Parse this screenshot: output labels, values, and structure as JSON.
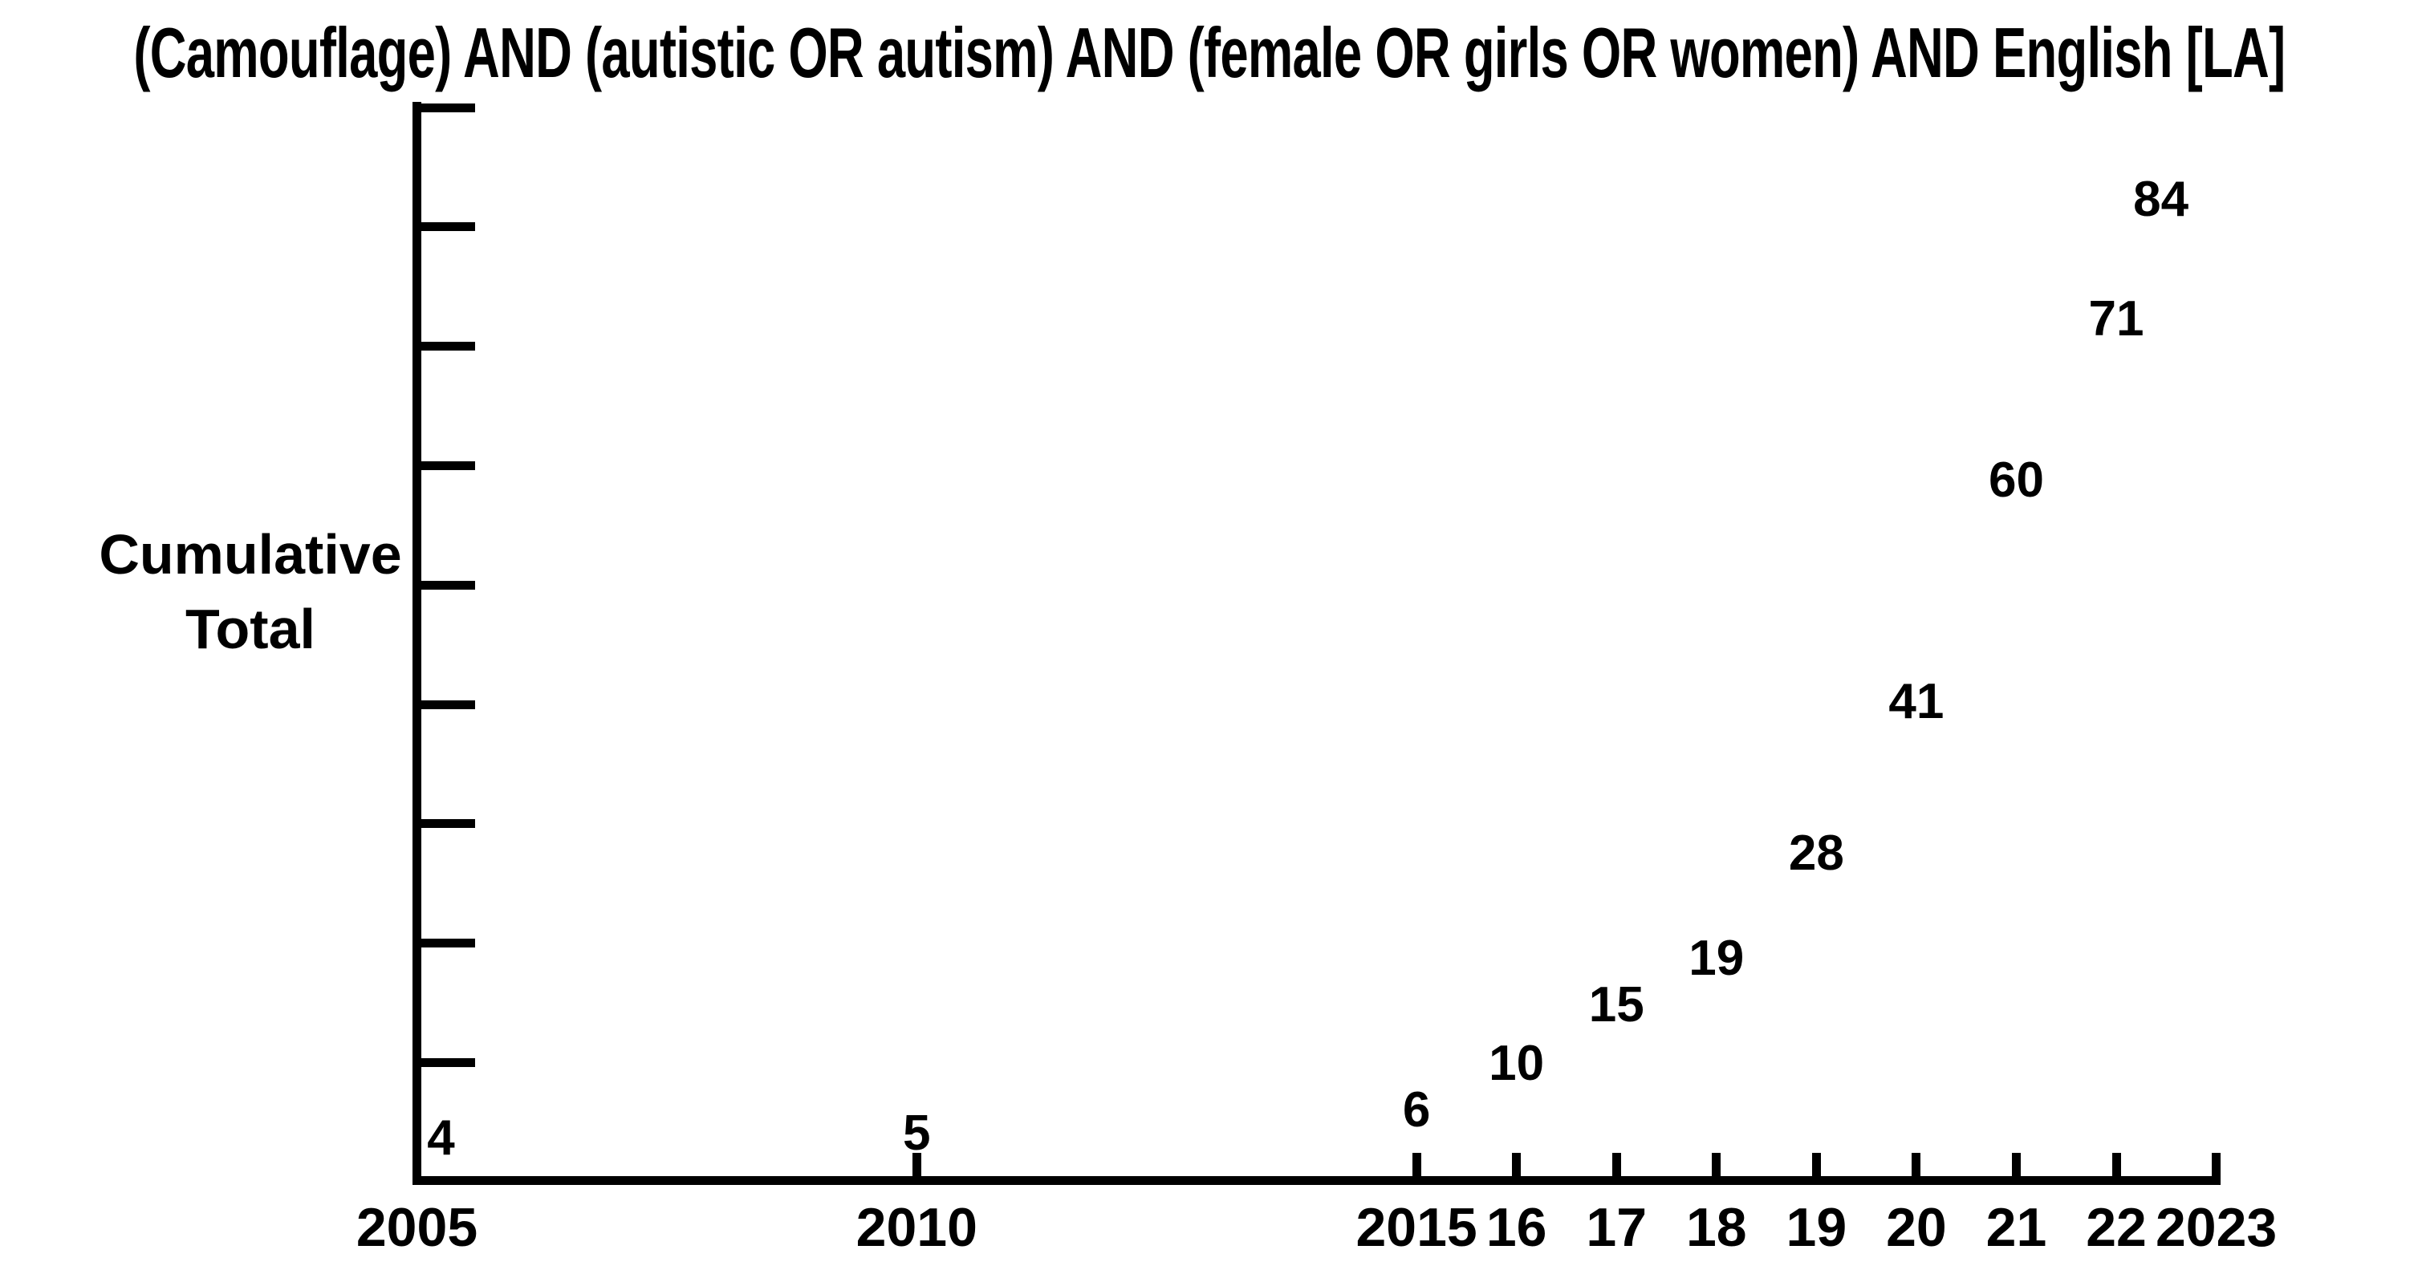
{
  "chart_data": {
    "type": "scatter",
    "title": "(Camouflage) AND (autistic OR autism) AND (female OR girls OR women) AND English [LA]",
    "ylabel": "Cumulative Total",
    "ylabel_lines": [
      "Cumulative",
      "Total"
    ],
    "xlabel": "",
    "marker_style": "value-number-as-marker",
    "grid": false,
    "legend": "none",
    "background_color": "#ffffff",
    "axis_color": "#000000",
    "text_color": "#000000",
    "x_axis": {
      "tick_labels": [
        "2005",
        "2010",
        "2015",
        "16",
        "17",
        "18",
        "19",
        "20",
        "21",
        "22",
        "2023"
      ],
      "range_years": [
        2005,
        2023
      ]
    },
    "y_axis": {
      "min": 0,
      "max": 90,
      "tick_step": 10,
      "tick_count": 9,
      "tick_labels_visible": false
    },
    "points": [
      {
        "year": 2005,
        "x_label": "2005",
        "value": 4,
        "label": "4"
      },
      {
        "year": 2010,
        "x_label": "2010",
        "value": 5,
        "label": "5"
      },
      {
        "year": 2015,
        "x_label": "2015",
        "value": 6,
        "label": "6"
      },
      {
        "year": 2016,
        "x_label": "16",
        "value": 10,
        "label": "10"
      },
      {
        "year": 2017,
        "x_label": "17",
        "value": 15,
        "label": "15"
      },
      {
        "year": 2018,
        "x_label": "18",
        "value": 19,
        "label": "19"
      },
      {
        "year": 2019,
        "x_label": "19",
        "value": 28,
        "label": "28"
      },
      {
        "year": 2020,
        "x_label": "20",
        "value": 41,
        "label": "41"
      },
      {
        "year": 2021,
        "x_label": "21",
        "value": 60,
        "label": "60"
      },
      {
        "year": 2022,
        "x_label": "22",
        "value": 71,
        "label": "71"
      },
      {
        "year": 2023,
        "x_label": "2023",
        "value": 84,
        "label": "84"
      }
    ]
  }
}
